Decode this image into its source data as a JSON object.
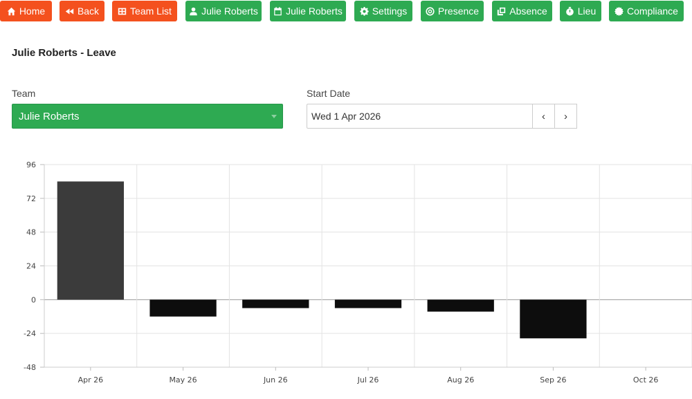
{
  "nav": {
    "home": "Home",
    "back": "Back",
    "team_list": "Team List",
    "profile": "Julie Roberts",
    "calendar": "Julie Roberts",
    "settings": "Settings",
    "presence": "Presence",
    "absence": "Absence",
    "lieu": "Lieu",
    "compliance": "Compliance"
  },
  "colors": {
    "orange": "#f4511e",
    "green": "#2eaa52",
    "bar_dark": "#3b3b3b",
    "bar_black": "#0d0d0d"
  },
  "page": {
    "title": "Julie Roberts - Leave"
  },
  "form": {
    "team_label": "Team",
    "team_value": "Julie Roberts",
    "start_label": "Start Date",
    "start_value": "Wed 1 Apr 2026",
    "prev": "‹",
    "next": "›"
  },
  "chart_data": {
    "type": "bar",
    "categories": [
      "Apr 26",
      "May 26",
      "Jun 26",
      "Jul 26",
      "Aug 26",
      "Sep 26",
      "Oct 26"
    ],
    "values": [
      84,
      -12,
      -6,
      -6,
      -8.5,
      -27.5,
      0
    ],
    "ylim": [
      -48,
      96
    ],
    "yticks": [
      96,
      72,
      48,
      24,
      0,
      -24,
      -48
    ],
    "grid": true
  }
}
